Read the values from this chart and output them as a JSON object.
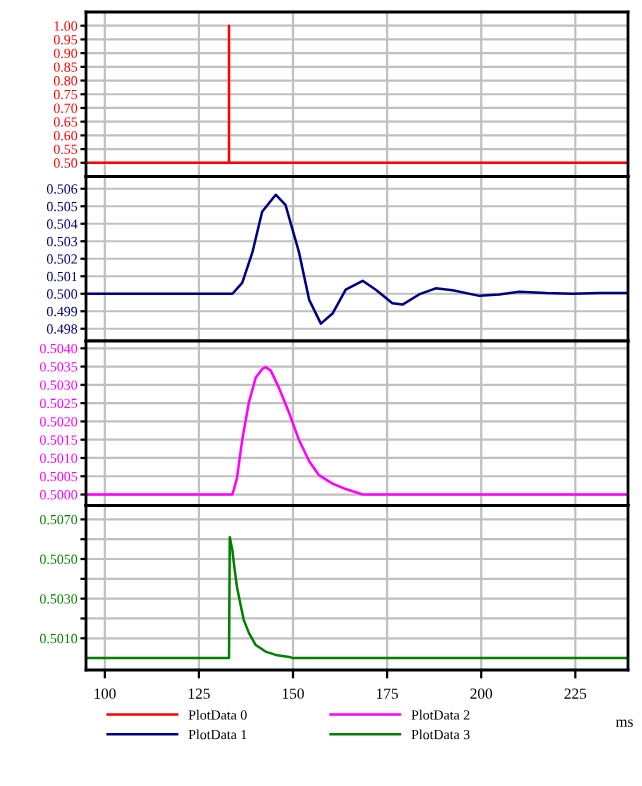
{
  "chart_data": [
    {
      "type": "line",
      "xlim": [
        95,
        239
      ],
      "xticks": [
        100,
        125,
        150,
        175,
        200,
        225
      ],
      "ylim": [
        0.45,
        1.05
      ],
      "yticks": [
        {
          "value": 1.0,
          "label": "1.00"
        },
        {
          "value": 0.95,
          "label": "0.95"
        },
        {
          "value": 0.9,
          "label": "0.90"
        },
        {
          "value": 0.85,
          "label": "0.85"
        },
        {
          "value": 0.8,
          "label": "0.80"
        },
        {
          "value": 0.75,
          "label": "0.75"
        },
        {
          "value": 0.7,
          "label": "0.70"
        },
        {
          "value": 0.65,
          "label": "0.65"
        },
        {
          "value": 0.6,
          "label": "0.60"
        },
        {
          "value": 0.55,
          "label": "0.55"
        },
        {
          "value": 0.5,
          "label": "0.50"
        }
      ],
      "tick_labels": "y",
      "grid": true,
      "legend": "bottom",
      "series": [
        {
          "name": "PlotData 0",
          "color": "#ff0000",
          "x": [
            95,
            133,
            133,
            133,
            239
          ],
          "values": [
            0.5,
            0.5,
            1.0,
            0.5,
            0.5
          ]
        }
      ]
    },
    {
      "type": "line",
      "xlim": [
        95,
        239
      ],
      "xticks": [
        100,
        125,
        150,
        175,
        200,
        225
      ],
      "ylim": [
        0.4973,
        0.5067
      ],
      "yticks": [
        0.506,
        0.505,
        0.504,
        0.503,
        0.502,
        0.501,
        {
          "value": 0.5,
          "label": "0.500"
        },
        0.499,
        0.498
      ],
      "tick_labels": "y",
      "grid": true,
      "legend": "bottom",
      "series": [
        {
          "name": "PlotData 1",
          "color": "#000080",
          "x": [
            95,
            125.0,
            133.9,
            136.5,
            139.2,
            141.8,
            145.4,
            148.0,
            151.6,
            154.3,
            157.4,
            160.5,
            164.0,
            168.5,
            172.0,
            176.4,
            179.1,
            183.5,
            187.9,
            192.4,
            199.5,
            204.8,
            210.1,
            217.2,
            224.3,
            231.4,
            238.5
          ],
          "values": [
            0.5,
            0.5,
            0.5,
            0.50062,
            0.50236,
            0.50469,
            0.50566,
            0.50508,
            0.50236,
            0.49965,
            0.49829,
            0.49887,
            0.50023,
            0.50074,
            0.50023,
            0.49946,
            0.49938,
            0.49996,
            0.50031,
            0.5002,
            0.49988,
            0.49996,
            0.50012,
            0.50004,
            0.5,
            0.50004,
            0.50004
          ]
        }
      ]
    },
    {
      "type": "line",
      "xlim": [
        95,
        239
      ],
      "xticks": [
        100,
        125,
        150,
        175,
        200,
        225
      ],
      "ylim": [
        0.4997,
        0.5042
      ],
      "yticks": [
        {
          "value": 0.504,
          "label": "0.5040"
        },
        {
          "value": 0.5035,
          "label": "0.5035"
        },
        {
          "value": 0.503,
          "label": "0.5030"
        },
        {
          "value": 0.5025,
          "label": "0.5025"
        },
        {
          "value": 0.502,
          "label": "0.5020"
        },
        {
          "value": 0.5015,
          "label": "0.5015"
        },
        {
          "value": 0.501,
          "label": "0.5010"
        },
        {
          "value": 0.5005,
          "label": "0.5005"
        },
        {
          "value": 0.5,
          "label": "0.5000"
        }
      ],
      "tick_labels": "y",
      "grid": true,
      "legend": "bottom",
      "series": [
        {
          "name": "PlotData 2",
          "color": "#ff00ff",
          "x": [
            95,
            125.0,
            133.9,
            135.1,
            136.5,
            138.3,
            140.1,
            141.8,
            142.7,
            144.1,
            146.3,
            148.9,
            151.6,
            154.3,
            156.9,
            160.5,
            164.0,
            168.5,
            171.1,
            238.5
          ],
          "values": [
            0.5,
            0.5,
            0.5,
            0.50044,
            0.50149,
            0.50253,
            0.5032,
            0.50343,
            0.50349,
            0.50339,
            0.50291,
            0.50225,
            0.50149,
            0.50091,
            0.50053,
            0.5003,
            0.50015,
            0.5,
            0.5,
            0.5
          ]
        }
      ]
    },
    {
      "type": "line",
      "xlim": [
        95,
        239
      ],
      "xticks": [
        100,
        125,
        150,
        175,
        200,
        225
      ],
      "ylim": [
        0.4994,
        0.5077
      ],
      "yticks": [
        {
          "value": 0.507,
          "label": "0.5070"
        },
        {
          "value": 0.506,
          "label": null
        },
        {
          "value": 0.505,
          "label": "0.5050"
        },
        {
          "value": 0.504,
          "label": null
        },
        {
          "value": 0.503,
          "label": "0.5030"
        },
        {
          "value": 0.502,
          "label": null
        },
        {
          "value": 0.501,
          "label": "0.5010"
        }
      ],
      "xlabel": "ms",
      "grid": true,
      "legend": "bottom",
      "series": [
        {
          "name": "PlotData 3",
          "color": "#008000",
          "x": [
            95,
            133.0,
            133.2,
            133.9,
            134.4,
            135.1,
            136.0,
            136.9,
            138.3,
            140.1,
            142.7,
            145.4,
            149.0,
            149.9,
            238.5
          ],
          "values": [
            0.5,
            0.5,
            0.5061,
            0.50543,
            0.5046,
            0.5036,
            0.50276,
            0.50193,
            0.50126,
            0.50066,
            0.50033,
            0.50016,
            0.50006,
            0.5,
            0.5
          ]
        }
      ]
    }
  ]
}
